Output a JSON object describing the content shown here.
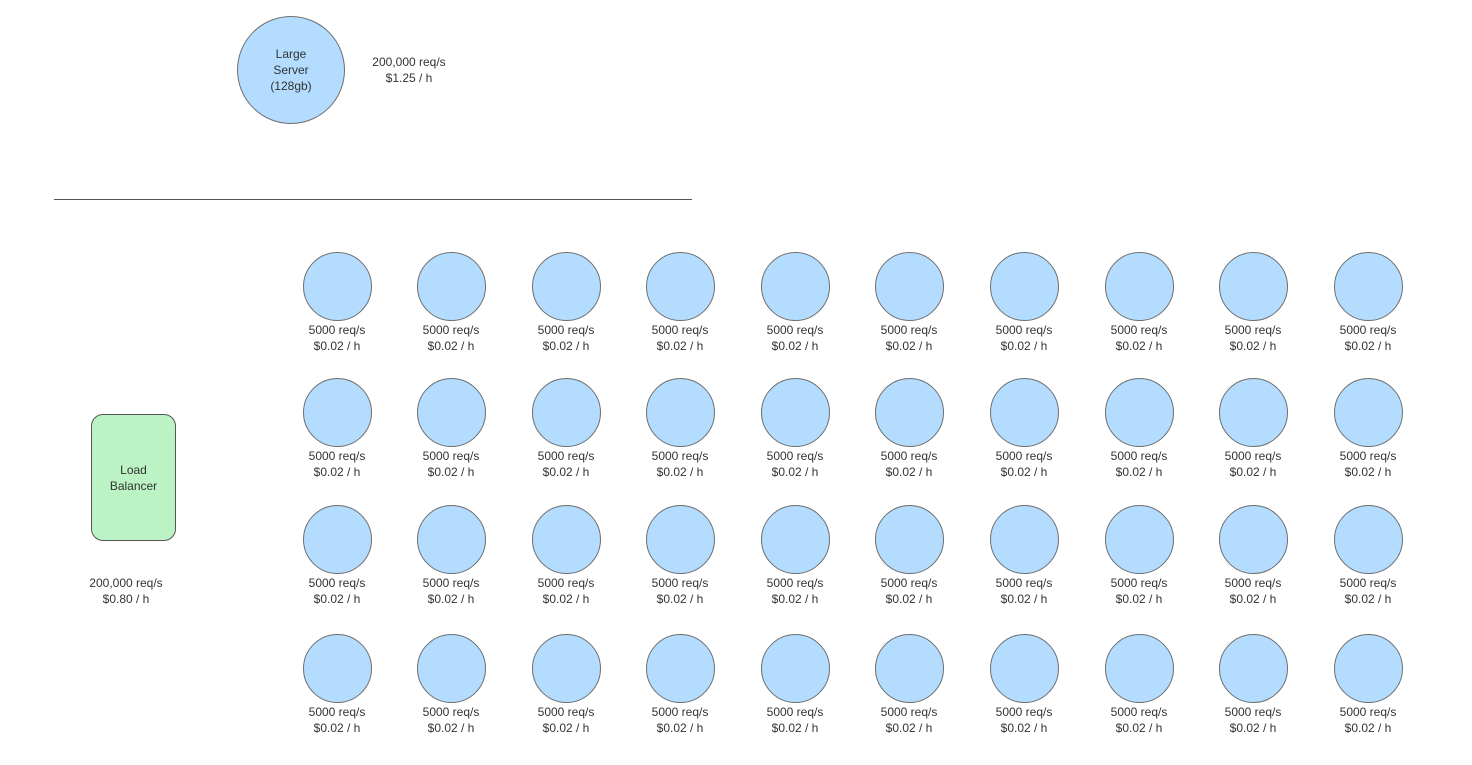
{
  "colors": {
    "server_fill": "#b3dcfe",
    "load_balancer_fill": "#bbf3c4"
  },
  "large_server": {
    "label": "Large\nServer\n(128gb)",
    "throughput": "200,000 req/s",
    "cost": "$1.25 / h"
  },
  "load_balancer": {
    "label": "Load\nBalancer",
    "throughput": "200,000 req/s",
    "cost": "$0.80 / h"
  },
  "small_servers": {
    "rows": 4,
    "columns": 10,
    "throughput": "5000 req/s",
    "cost": "$0.02 / h"
  }
}
